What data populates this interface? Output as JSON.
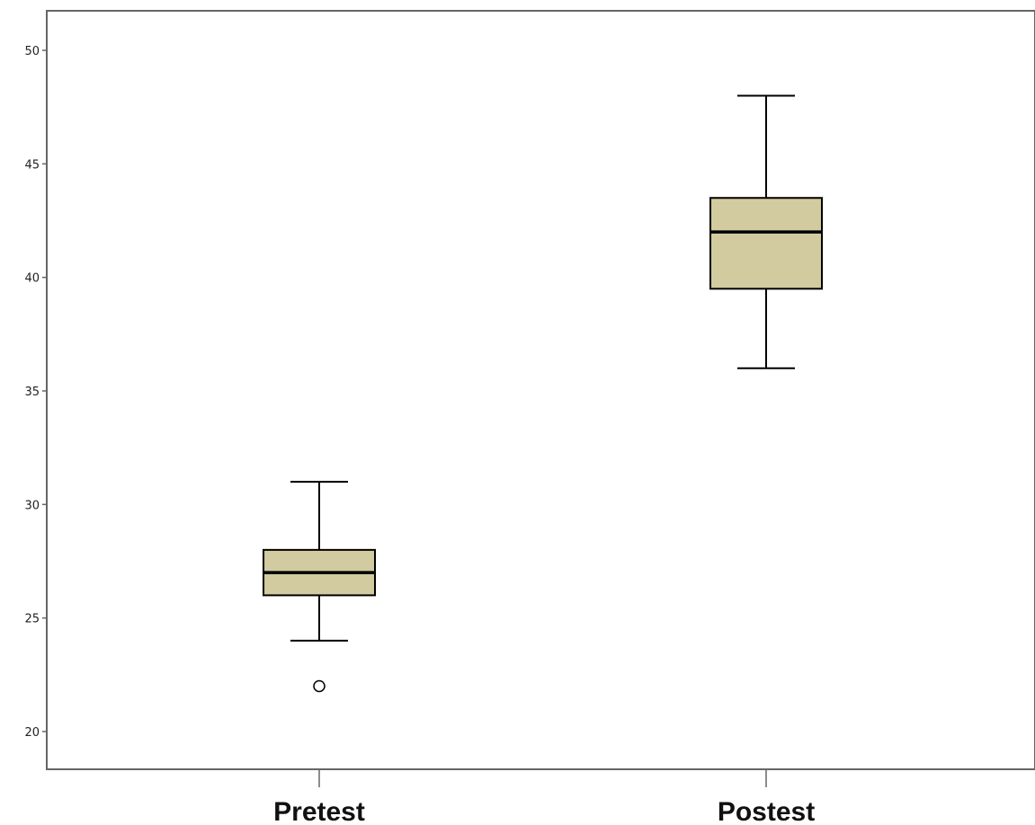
{
  "chart_data": {
    "type": "boxplot",
    "title": "",
    "xlabel": "",
    "ylabel": "",
    "ylim": [
      18.3,
      51.7
    ],
    "yticks": [
      20,
      25,
      30,
      35,
      40,
      45,
      50
    ],
    "ytick_labels": [
      "20",
      "25",
      "30",
      "35",
      "40",
      "45",
      "50"
    ],
    "grid": false,
    "categories": [
      "Pretest",
      "Postest"
    ],
    "boxes": [
      {
        "category": "Pretest",
        "whisker_low": 24,
        "q1": 26,
        "median": 27,
        "q3": 28,
        "whisker_high": 31,
        "outliers": [
          22
        ]
      },
      {
        "category": "Postest",
        "whisker_low": 36,
        "q1": 39.5,
        "median": 42,
        "q3": 43.5,
        "whisker_high": 48,
        "outliers": []
      }
    ],
    "colors": {
      "box_fill": "#d2cb9f",
      "stroke": "#000000",
      "axis": "#666666"
    }
  }
}
